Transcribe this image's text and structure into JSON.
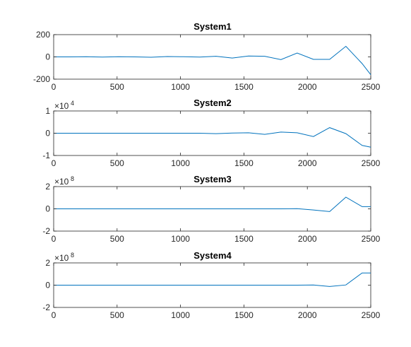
{
  "chart_data": [
    {
      "type": "line",
      "title": "System1",
      "xlim": [
        0,
        2500
      ],
      "ylim": [
        -200,
        200
      ],
      "xticks": [
        0,
        500,
        1000,
        1500,
        2000,
        2500
      ],
      "yticks": [
        -200,
        0,
        200
      ],
      "ytick_labels": [
        "-200",
        "0",
        "200"
      ],
      "exponent": "",
      "color": "#0072BD",
      "x": [
        0,
        128,
        256,
        384,
        512,
        640,
        768,
        896,
        1024,
        1152,
        1280,
        1408,
        1536,
        1664,
        1792,
        1920,
        2048,
        2176,
        2304,
        2432,
        2500
      ],
      "y": [
        0,
        0,
        1,
        -2,
        2,
        0,
        -3,
        3,
        1,
        -1,
        6,
        -10,
        8,
        6,
        -25,
        35,
        -22,
        -22,
        95,
        -60,
        -160
      ]
    },
    {
      "type": "line",
      "title": "System2",
      "xlim": [
        0,
        2500
      ],
      "ylim": [
        -1,
        1
      ],
      "xticks": [
        0,
        500,
        1000,
        1500,
        2000,
        2500
      ],
      "yticks": [
        -1,
        0,
        1
      ],
      "ytick_labels": [
        "-1",
        "0",
        "1"
      ],
      "exponent": "4",
      "color": "#0072BD",
      "x": [
        0,
        128,
        256,
        384,
        512,
        640,
        768,
        896,
        1024,
        1152,
        1280,
        1408,
        1536,
        1664,
        1792,
        1920,
        2048,
        2176,
        2304,
        2432,
        2500
      ],
      "y": [
        0,
        0,
        0,
        0,
        0,
        0,
        0,
        0,
        0,
        0,
        -0.02,
        0.01,
        0.02,
        -0.05,
        0.05,
        0.02,
        -0.15,
        0.25,
        -0.02,
        -0.55,
        -0.63
      ]
    },
    {
      "type": "line",
      "title": "System3",
      "xlim": [
        0,
        2500
      ],
      "ylim": [
        -2,
        2
      ],
      "xticks": [
        0,
        500,
        1000,
        1500,
        2000,
        2500
      ],
      "yticks": [
        -2,
        0,
        2
      ],
      "ytick_labels": [
        "-2",
        "0",
        "2"
      ],
      "exponent": "8",
      "color": "#0072BD",
      "x": [
        0,
        128,
        256,
        384,
        512,
        640,
        768,
        896,
        1024,
        1152,
        1280,
        1408,
        1536,
        1664,
        1792,
        1920,
        2048,
        2176,
        2304,
        2432,
        2500
      ],
      "y": [
        0,
        0,
        0,
        0,
        0,
        0,
        0,
        0,
        0,
        0,
        0,
        0,
        0,
        0,
        0,
        0.02,
        -0.1,
        -0.25,
        1.05,
        0.2,
        0.2
      ]
    },
    {
      "type": "line",
      "title": "System4",
      "xlim": [
        0,
        2500
      ],
      "ylim": [
        -2,
        2
      ],
      "xticks": [
        0,
        500,
        1000,
        1500,
        2000,
        2500
      ],
      "yticks": [
        -2,
        0,
        2
      ],
      "ytick_labels": [
        "-2",
        "0",
        "2"
      ],
      "exponent": "8",
      "color": "#0072BD",
      "x": [
        0,
        128,
        256,
        384,
        512,
        640,
        768,
        896,
        1024,
        1152,
        1280,
        1408,
        1536,
        1664,
        1792,
        1920,
        2048,
        2176,
        2304,
        2432,
        2500
      ],
      "y": [
        0,
        0,
        0,
        0,
        0,
        0,
        0,
        0,
        0,
        0,
        0,
        0,
        0,
        0,
        0,
        0,
        0.02,
        -0.12,
        0.02,
        1.1,
        1.1
      ]
    }
  ]
}
